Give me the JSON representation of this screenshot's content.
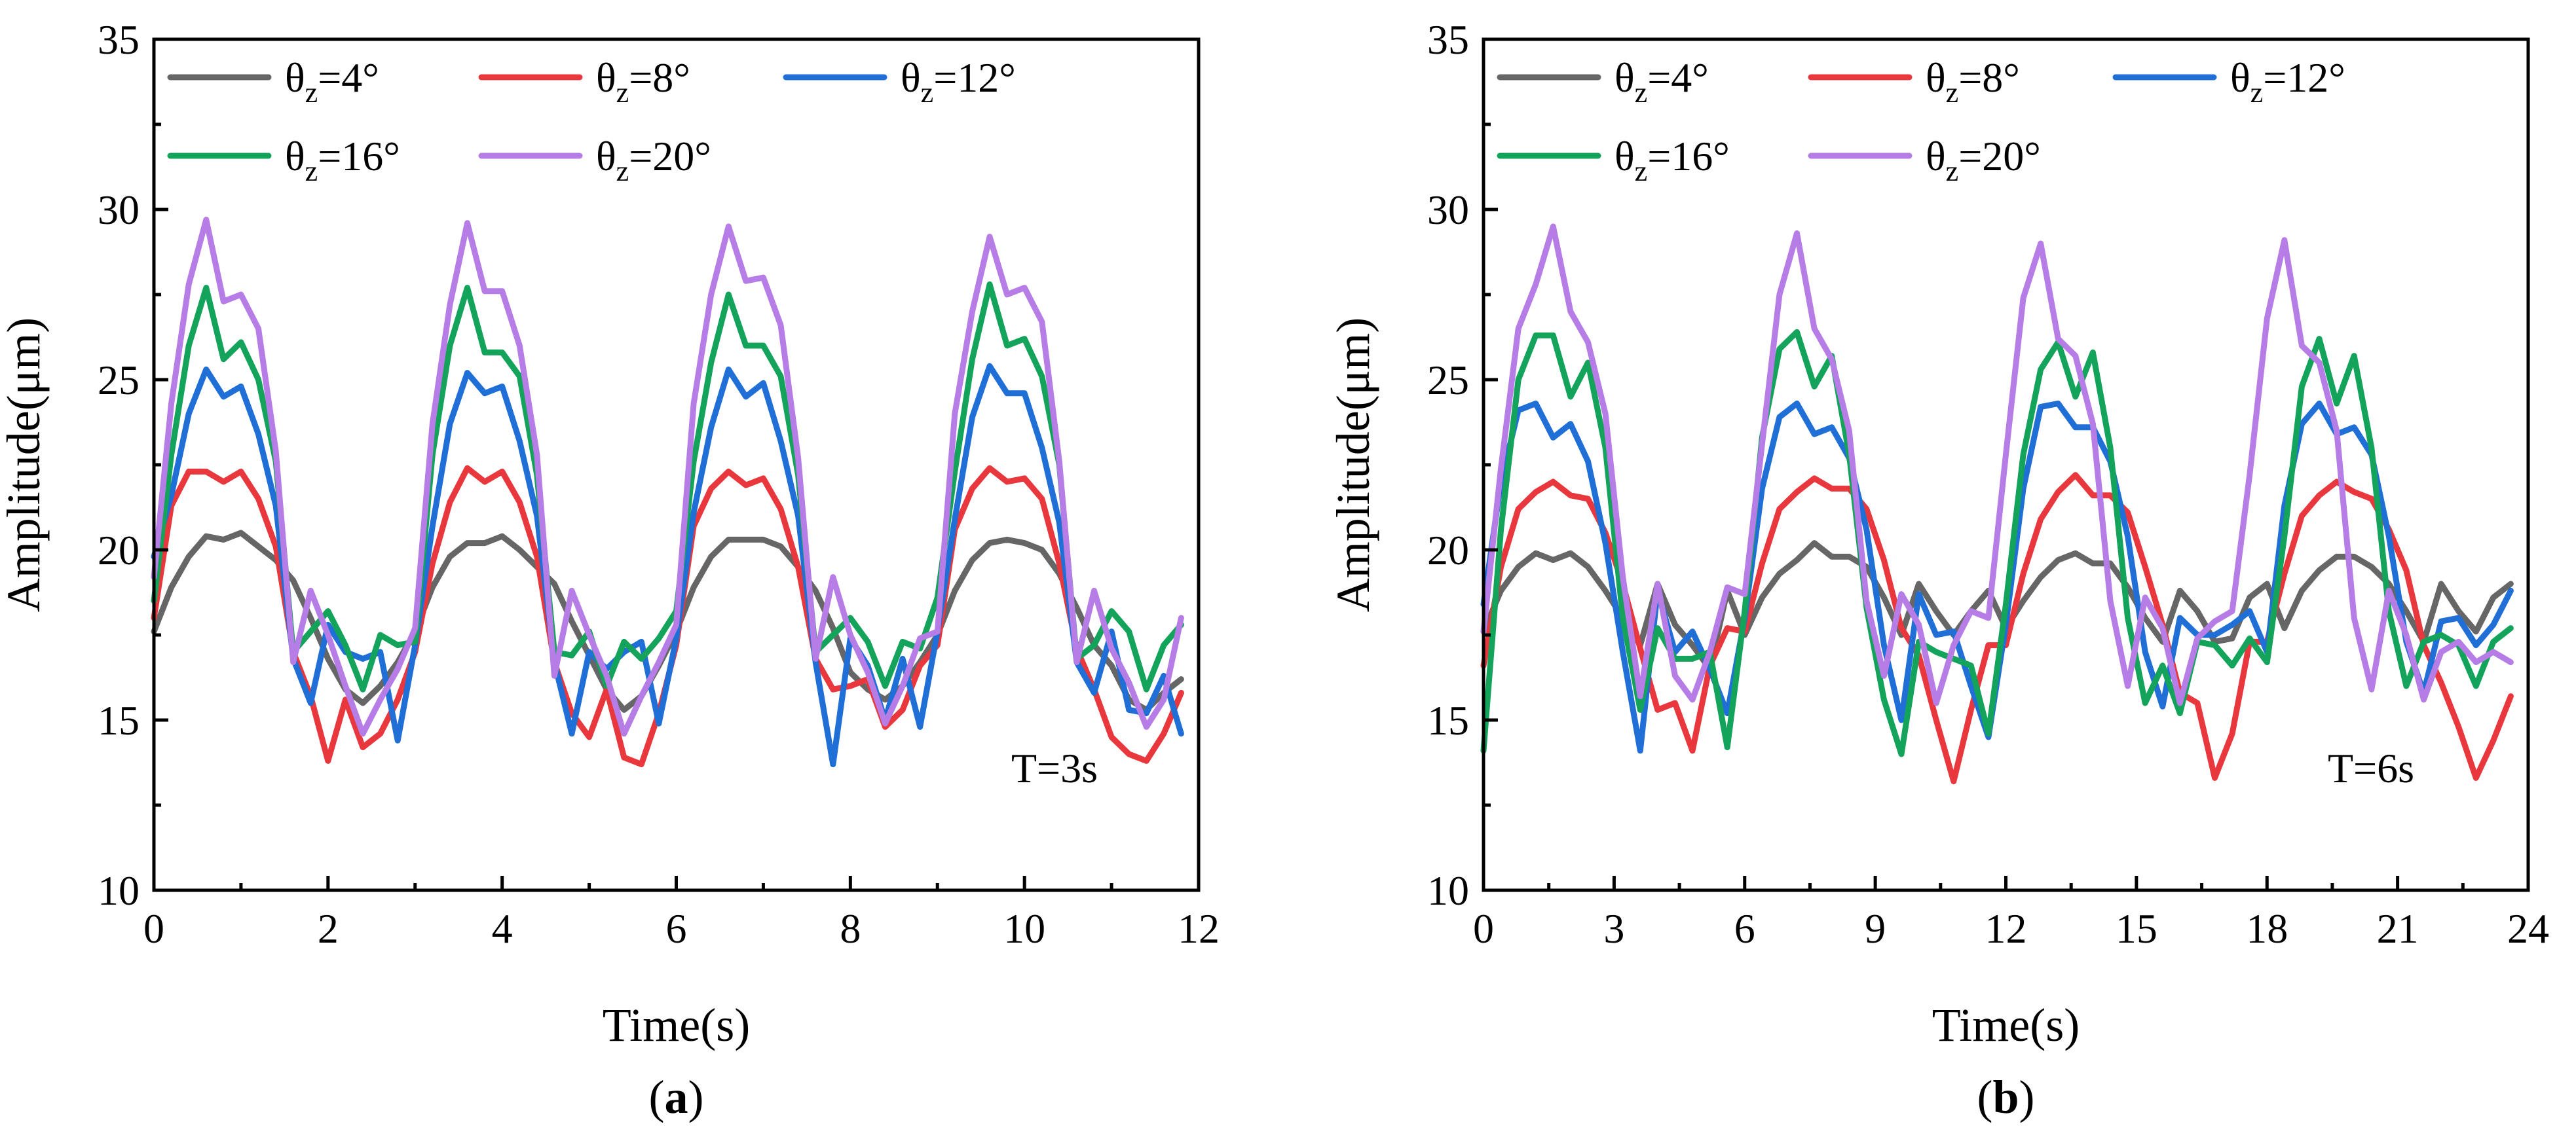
{
  "figure": {
    "panels": [
      "a",
      "b"
    ]
  },
  "chart_data": [
    {
      "type": "line",
      "panel_label": "a",
      "title": "",
      "annotation": "T=3s",
      "xlabel": "Time(s)",
      "ylabel": "Amplitude(μm)",
      "xlim": [
        0,
        12
      ],
      "ylim": [
        10,
        35
      ],
      "xticks": [
        0,
        2,
        4,
        6,
        8,
        10,
        12
      ],
      "yticks": [
        10,
        15,
        20,
        25,
        30,
        35
      ],
      "legend_position": "top-left",
      "x": [
        0.0,
        0.2,
        0.4,
        0.6,
        0.8,
        1.0,
        1.2,
        1.4,
        1.6,
        1.8,
        2.0,
        2.2,
        2.4,
        2.6,
        2.8,
        3.0,
        3.2,
        3.4,
        3.6,
        3.8,
        4.0,
        4.2,
        4.4,
        4.6,
        4.8,
        5.0,
        5.2,
        5.4,
        5.6,
        5.8,
        6.0,
        6.2,
        6.4,
        6.6,
        6.8,
        7.0,
        7.2,
        7.4,
        7.6,
        7.8,
        8.0,
        8.2,
        8.4,
        8.6,
        8.8,
        9.0,
        9.2,
        9.4,
        9.6,
        9.8,
        10.0,
        10.2,
        10.4,
        10.6,
        10.8,
        11.0,
        11.2,
        11.4,
        11.6,
        11.8
      ],
      "series": [
        {
          "name": "θz=4°",
          "label_main": "θ",
          "label_sub": "z",
          "label_rest": "=4°",
          "color": "#666666",
          "values": [
            17.6,
            18.9,
            19.8,
            20.4,
            20.3,
            20.5,
            20.1,
            19.7,
            19.1,
            18.0,
            16.8,
            15.9,
            15.5,
            16.0,
            16.7,
            17.6,
            18.9,
            19.8,
            20.2,
            20.2,
            20.4,
            20.0,
            19.5,
            19.0,
            17.9,
            16.9,
            15.9,
            15.3,
            15.7,
            16.6,
            17.6,
            18.9,
            19.8,
            20.3,
            20.3,
            20.3,
            20.1,
            19.5,
            18.8,
            17.7,
            16.4,
            15.9,
            15.6,
            16.0,
            16.7,
            17.5,
            18.8,
            19.7,
            20.2,
            20.3,
            20.2,
            20.0,
            19.3,
            18.3,
            17.2,
            16.6,
            15.6,
            15.3,
            15.8,
            16.2
          ]
        },
        {
          "name": "θz=8°",
          "label_main": "θ",
          "label_sub": "z",
          "label_rest": "=8°",
          "color": "#e8383d",
          "values": [
            18.0,
            21.3,
            22.3,
            22.3,
            22.0,
            22.3,
            21.5,
            20.1,
            17.0,
            15.7,
            13.8,
            15.6,
            14.2,
            14.6,
            15.6,
            17.0,
            19.6,
            21.4,
            22.4,
            22.0,
            22.3,
            21.4,
            19.8,
            16.7,
            15.2,
            14.5,
            15.9,
            13.9,
            13.7,
            15.2,
            17.2,
            20.7,
            21.8,
            22.3,
            21.9,
            22.1,
            21.2,
            19.5,
            16.8,
            15.9,
            16.0,
            16.2,
            14.8,
            15.3,
            16.6,
            17.2,
            20.6,
            21.8,
            22.4,
            22.0,
            22.1,
            21.5,
            19.6,
            17.1,
            15.9,
            14.5,
            14.0,
            13.8,
            14.6,
            15.8
          ]
        },
        {
          "name": "θz=12°",
          "label_main": "θ",
          "label_sub": "z",
          "label_rest": "=12°",
          "color": "#1f6fd6",
          "values": [
            19.8,
            21.6,
            24.0,
            25.3,
            24.5,
            24.8,
            23.4,
            21.3,
            16.8,
            15.5,
            17.8,
            17.0,
            16.8,
            17.0,
            14.4,
            17.2,
            20.7,
            23.7,
            25.2,
            24.6,
            24.8,
            23.2,
            21.0,
            16.7,
            14.6,
            17.0,
            16.5,
            17.0,
            17.3,
            14.9,
            17.4,
            21.1,
            23.6,
            25.3,
            24.5,
            24.9,
            23.2,
            21.0,
            16.7,
            13.7,
            17.4,
            16.6,
            15.0,
            16.8,
            14.8,
            17.6,
            20.9,
            23.9,
            25.4,
            24.6,
            24.6,
            23.0,
            20.8,
            16.7,
            15.8,
            17.6,
            15.3,
            15.2,
            16.3,
            14.6
          ]
        },
        {
          "name": "θz=16°",
          "label_main": "θ",
          "label_sub": "z",
          "label_rest": "=16°",
          "color": "#14a35a",
          "values": [
            18.5,
            22.8,
            26.0,
            27.7,
            25.6,
            26.1,
            25.0,
            22.6,
            17.0,
            17.6,
            18.2,
            17.2,
            15.9,
            17.5,
            17.2,
            17.3,
            22.8,
            26.0,
            27.7,
            25.8,
            25.8,
            25.1,
            22.2,
            17.0,
            16.9,
            17.6,
            16.0,
            17.3,
            16.8,
            17.4,
            18.2,
            22.6,
            25.5,
            27.5,
            26.0,
            26.0,
            25.1,
            22.2,
            17.0,
            17.5,
            18.0,
            17.3,
            16.0,
            17.3,
            17.1,
            18.6,
            22.3,
            25.6,
            27.8,
            26.0,
            26.2,
            25.1,
            22.5,
            16.8,
            17.2,
            18.2,
            17.6,
            15.9,
            17.2,
            17.8
          ]
        },
        {
          "name": "θz=20°",
          "label_main": "θ",
          "label_sub": "z",
          "label_rest": "=20°",
          "color": "#b77de6",
          "values": [
            19.2,
            24.3,
            27.8,
            29.7,
            27.3,
            27.5,
            26.5,
            22.9,
            16.7,
            18.8,
            17.5,
            16.0,
            14.6,
            15.6,
            16.5,
            17.7,
            23.7,
            27.2,
            29.6,
            27.6,
            27.6,
            26.0,
            22.8,
            16.3,
            18.8,
            17.5,
            16.3,
            14.6,
            15.7,
            16.7,
            17.8,
            24.3,
            27.5,
            29.5,
            27.9,
            28.0,
            26.6,
            22.7,
            16.8,
            19.2,
            17.5,
            16.4,
            14.9,
            16.0,
            17.4,
            17.6,
            24.0,
            27.0,
            29.2,
            27.5,
            27.7,
            26.7,
            22.6,
            16.7,
            18.8,
            17.1,
            16.1,
            14.8,
            15.6,
            18.0
          ]
        }
      ]
    },
    {
      "type": "line",
      "panel_label": "b",
      "title": "",
      "annotation": "T=6s",
      "xlabel": "Time(s)",
      "ylabel": "Amplitude(μm)",
      "xlim": [
        0,
        24
      ],
      "ylim": [
        10,
        35
      ],
      "xticks": [
        0,
        3,
        6,
        9,
        12,
        15,
        18,
        21,
        24
      ],
      "yticks": [
        10,
        15,
        20,
        25,
        30,
        35
      ],
      "legend_position": "top-left",
      "x": [
        0.0,
        0.4,
        0.8,
        1.2,
        1.6,
        2.0,
        2.4,
        2.8,
        3.2,
        3.6,
        4.0,
        4.4,
        4.8,
        5.2,
        5.6,
        6.0,
        6.4,
        6.8,
        7.2,
        7.6,
        8.0,
        8.4,
        8.8,
        9.2,
        9.6,
        10.0,
        10.4,
        10.8,
        11.2,
        11.6,
        12.0,
        12.4,
        12.8,
        13.2,
        13.6,
        14.0,
        14.4,
        14.8,
        15.2,
        15.6,
        16.0,
        16.4,
        16.8,
        17.2,
        17.6,
        18.0,
        18.4,
        18.8,
        19.2,
        19.6,
        20.0,
        20.4,
        20.8,
        21.2,
        21.6,
        22.0,
        22.4,
        22.8,
        23.2,
        23.6
      ],
      "series": [
        {
          "name": "θz=4°",
          "label_main": "θ",
          "label_sub": "z",
          "label_rest": "=4°",
          "color": "#666666",
          "values": [
            17.6,
            18.8,
            19.5,
            19.9,
            19.7,
            19.9,
            19.5,
            18.8,
            18.0,
            17.2,
            19.0,
            17.8,
            17.2,
            16.5,
            18.8,
            17.5,
            18.6,
            19.3,
            19.7,
            20.2,
            19.8,
            19.8,
            19.5,
            18.6,
            17.5,
            19.0,
            18.2,
            17.5,
            18.2,
            18.8,
            17.7,
            18.5,
            19.2,
            19.7,
            19.9,
            19.6,
            19.6,
            18.9,
            18.0,
            17.3,
            18.8,
            18.2,
            17.3,
            17.4,
            18.6,
            19.0,
            17.7,
            18.8,
            19.4,
            19.8,
            19.8,
            19.5,
            19.0,
            18.2,
            17.3,
            19.0,
            18.2,
            17.6,
            18.6,
            19.0
          ]
        },
        {
          "name": "θz=8°",
          "label_main": "θ",
          "label_sub": "z",
          "label_rest": "=8°",
          "color": "#e8383d",
          "values": [
            16.6,
            19.5,
            21.2,
            21.7,
            22.0,
            21.6,
            21.5,
            20.5,
            19.0,
            17.1,
            15.3,
            15.5,
            14.1,
            16.6,
            17.7,
            17.6,
            19.6,
            21.2,
            21.7,
            22.1,
            21.8,
            21.8,
            21.2,
            19.7,
            17.7,
            16.9,
            15.0,
            13.2,
            15.3,
            17.2,
            17.2,
            19.3,
            20.9,
            21.7,
            22.2,
            21.6,
            21.6,
            21.1,
            19.5,
            17.8,
            15.8,
            15.5,
            13.3,
            14.6,
            17.3,
            17.3,
            19.3,
            21.0,
            21.6,
            22.0,
            21.7,
            21.5,
            20.6,
            19.4,
            17.2,
            16.1,
            14.8,
            13.3,
            14.4,
            15.7
          ]
        },
        {
          "name": "θz=12°",
          "label_main": "θ",
          "label_sub": "z",
          "label_rest": "=12°",
          "color": "#1f6fd6",
          "values": [
            18.4,
            22.0,
            24.1,
            24.3,
            23.3,
            23.7,
            22.6,
            20.2,
            17.0,
            14.1,
            18.8,
            17.0,
            17.6,
            16.5,
            15.2,
            18.0,
            21.8,
            23.9,
            24.3,
            23.4,
            23.6,
            22.7,
            20.6,
            17.2,
            15.0,
            18.7,
            17.5,
            17.6,
            16.0,
            14.5,
            17.8,
            21.8,
            24.2,
            24.3,
            23.6,
            23.6,
            22.6,
            20.4,
            17.0,
            15.4,
            18.0,
            17.5,
            17.5,
            17.8,
            18.2,
            17.0,
            21.3,
            23.7,
            24.3,
            23.4,
            23.6,
            22.8,
            20.4,
            17.3,
            15.8,
            17.9,
            18.0,
            17.2,
            17.8,
            18.8
          ]
        },
        {
          "name": "θz=16°",
          "label_main": "θ",
          "label_sub": "z",
          "label_rest": "=16°",
          "color": "#14a35a",
          "values": [
            14.1,
            20.6,
            25.0,
            26.3,
            26.3,
            24.5,
            25.5,
            23.0,
            18.0,
            15.3,
            17.7,
            16.8,
            16.8,
            17.0,
            14.2,
            18.2,
            23.3,
            25.9,
            26.4,
            24.8,
            25.7,
            22.8,
            18.3,
            15.6,
            14.0,
            17.3,
            17.0,
            16.8,
            16.6,
            14.6,
            18.4,
            22.8,
            25.3,
            26.1,
            24.5,
            25.8,
            23.0,
            18.0,
            15.5,
            16.6,
            15.2,
            17.3,
            17.2,
            16.6,
            17.4,
            16.7,
            20.4,
            24.8,
            26.2,
            24.3,
            25.7,
            23.0,
            18.2,
            16.0,
            17.3,
            17.5,
            17.2,
            16.0,
            17.3,
            17.7
          ]
        },
        {
          "name": "θz=20°",
          "label_main": "θ",
          "label_sub": "z",
          "label_rest": "=20°",
          "color": "#b77de6",
          "values": [
            17.6,
            22.4,
            26.5,
            27.8,
            29.5,
            27.0,
            26.1,
            24.0,
            19.2,
            15.7,
            19.0,
            16.3,
            15.6,
            17.0,
            18.9,
            18.7,
            23.1,
            27.5,
            29.3,
            26.5,
            25.6,
            23.5,
            18.5,
            16.3,
            18.7,
            17.8,
            15.5,
            17.2,
            18.2,
            18.0,
            22.8,
            27.4,
            29.0,
            26.2,
            25.7,
            23.7,
            18.5,
            16.0,
            18.6,
            17.7,
            15.5,
            17.4,
            17.9,
            18.2,
            22.2,
            26.8,
            29.1,
            26.0,
            25.5,
            23.5,
            18.0,
            15.9,
            18.8,
            17.5,
            15.6,
            17.0,
            17.3,
            16.7,
            17.0,
            16.7
          ]
        }
      ]
    }
  ]
}
